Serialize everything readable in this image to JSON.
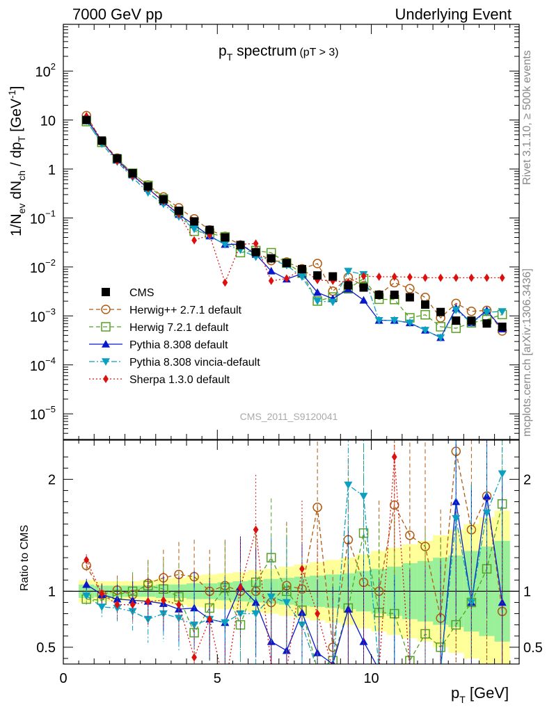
{
  "header": {
    "left": "7000 GeV pp",
    "right": "Underlying Event",
    "side_top": "Rivet 3.1.10, ≥ 500k events",
    "side_bottom": "mcplots.cern.ch [arXiv:1306.3436]",
    "watermark": "CMS_2011_S9120041"
  },
  "chart_data": {
    "type": "scatter",
    "title": "p",
    "title_sub": "T",
    "title_main": " spectrum",
    "title_cut": "(pT >  3)",
    "xlabel": "p",
    "xlabel_sub": "T",
    "xlabel_unit": " [GeV]",
    "ylabel_parts": [
      "1/N",
      "ev",
      " dN",
      "ch",
      " / dp",
      "T",
      " [GeV",
      "-1",
      "]"
    ],
    "ratio_ylabel": "Ratio to CMS",
    "xlim": [
      0,
      14.8
    ],
    "ylim_log": [
      3e-06,
      900
    ],
    "ratio_ylim": [
      0.35,
      2.35
    ],
    "log_y": true,
    "x_ticks": [
      0,
      5,
      10
    ],
    "x_tick_labels": [
      "0",
      "5",
      "10"
    ],
    "y_tick_labels": [
      "10^-5",
      "10^-4",
      "10^-3",
      "10^-2",
      "10^-1",
      "1",
      "10",
      "10^2"
    ],
    "ratio_tick_labels": [
      "0.5",
      "1",
      "2"
    ],
    "legend_position": "bottom-left",
    "x": [
      0.75,
      1.25,
      1.75,
      2.25,
      2.75,
      3.25,
      3.75,
      4.25,
      4.75,
      5.25,
      5.75,
      6.25,
      6.75,
      7.25,
      7.75,
      8.25,
      8.75,
      9.25,
      9.75,
      10.25,
      10.75,
      11.25,
      11.75,
      12.25,
      12.75,
      13.25,
      13.75,
      14.25
    ],
    "cms": [
      10.0,
      3.8,
      1.65,
      0.82,
      0.44,
      0.24,
      0.14,
      0.085,
      0.057,
      0.04,
      0.028,
      0.02,
      0.015,
      0.012,
      0.009,
      0.0067,
      0.0064,
      0.0042,
      0.0038,
      0.0027,
      0.0027,
      0.0024,
      0.0017,
      0.0012,
      0.0008,
      0.0008,
      0.0007,
      0.0006
    ],
    "band_inner": [
      0.06,
      0.05,
      0.05,
      0.05,
      0.05,
      0.06,
      0.06,
      0.07,
      0.07,
      0.08,
      0.09,
      0.1,
      0.11,
      0.12,
      0.13,
      0.14,
      0.15,
      0.16,
      0.18,
      0.2,
      0.22,
      0.25,
      0.27,
      0.3,
      0.32,
      0.36,
      0.4,
      0.45
    ],
    "band_outer": [
      0.1,
      0.09,
      0.09,
      0.09,
      0.1,
      0.11,
      0.12,
      0.14,
      0.15,
      0.16,
      0.17,
      0.19,
      0.2,
      0.22,
      0.24,
      0.26,
      0.28,
      0.3,
      0.33,
      0.36,
      0.39,
      0.42,
      0.45,
      0.5,
      0.55,
      0.6,
      0.66,
      0.72
    ],
    "series": [
      {
        "name": "CMS",
        "color": "#000000",
        "marker": "square-filled",
        "dash": "",
        "ratio": null
      },
      {
        "name": "Herwig++ 2.7.1 default",
        "color": "#b05a10",
        "marker": "circle-open",
        "dash": "6,4",
        "ratio": [
          1.23,
          0.97,
          1.01,
          0.97,
          1.07,
          1.12,
          1.15,
          1.13,
          1.0,
          1.05,
          1.0,
          1.0,
          0.9,
          1.05,
          1.02,
          1.75,
          0.5,
          1.46,
          1.08,
          1.0,
          1.77,
          1.5,
          1.4,
          0.76,
          2.25,
          1.55,
          1.85,
          0.82
        ]
      },
      {
        "name": "Herwig 7.2.1 default",
        "color": "#55a020",
        "marker": "square-open",
        "dash": "6,4",
        "ratio": [
          0.93,
          0.92,
          0.97,
          1.0,
          1.05,
          1.02,
          0.95,
          0.63,
          0.85,
          1.03,
          0.7,
          1.08,
          1.3,
          1.0,
          0.83,
          0.3,
          0.38,
          0.85,
          1.52,
          0.81,
          0.8,
          0.38,
          0.62,
          0.5,
          0.7,
          0.9,
          1.2,
          1.78
        ]
      },
      {
        "name": "Pythia 8.308 default",
        "color": "#0a18cc",
        "marker": "triangle-up",
        "dash": "",
        "ratio": [
          1.06,
          0.97,
          0.93,
          0.92,
          0.91,
          0.89,
          0.84,
          0.85,
          0.75,
          0.72,
          1.04,
          0.9,
          0.55,
          0.47,
          0.81,
          0.45,
          0.35,
          0.84,
          0.55,
          0.3,
          0.3,
          0.3,
          0.3,
          0.3,
          1.8,
          0.9,
          1.85,
          0.9
        ]
      },
      {
        "name": "Pythia 8.308 vincia-default",
        "color": "#0aa0c0",
        "marker": "triangle-down",
        "dash": "8,3,2,3",
        "ratio": [
          0.96,
          0.86,
          0.85,
          0.82,
          0.75,
          0.8,
          0.76,
          0.7,
          0.75,
          0.72,
          0.8,
          0.8,
          0.95,
          0.9,
          0.7,
          0.3,
          0.3,
          1.95,
          1.85,
          0.3,
          0.3,
          0.3,
          0.3,
          0.3,
          1.65,
          0.9,
          1.7,
          2.05
        ]
      },
      {
        "name": "Sherpa 1.3.0 default",
        "color": "#dd1010",
        "marker": "diamond",
        "dash": "2,3",
        "ratio": [
          1.28,
          0.98,
          0.88,
          0.88,
          0.91,
          0.92,
          0.88,
          0.41,
          0.75,
          0.12,
          1.03,
          1.55,
          0.33,
          0.3,
          1.2,
          0.8,
          0.3,
          0.3,
          0.3,
          0.3,
          2.2,
          0.3,
          0.3,
          0.3,
          0.3,
          0.3,
          0.3,
          0.3
        ],
        "main_override": [
          12.0,
          3.8,
          1.45,
          0.72,
          0.4,
          0.22,
          0.12,
          0.035,
          0.045,
          0.0048,
          0.029,
          0.03,
          0.0052,
          0.0058,
          0.009,
          0.0054,
          0.0052,
          0.0049,
          0.0065,
          0.0063,
          0.0063,
          0.0062,
          0.006,
          0.006,
          0.006,
          0.006,
          0.006,
          0.006
        ]
      }
    ]
  }
}
